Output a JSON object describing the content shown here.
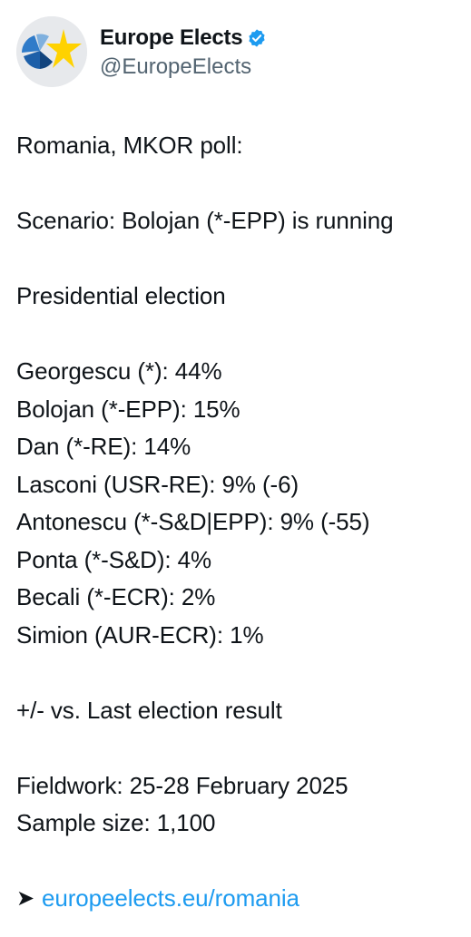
{
  "account": {
    "display_name": "Europe Elects",
    "handle": "@EuropeElects",
    "verified": true,
    "avatar_icon": "europe-elects-logo-icon",
    "verified_icon": "verified-badge-icon"
  },
  "tweet": {
    "intro": "Romania, MKOR poll:",
    "scenario": "Scenario: Bolojan (*-EPP) is running",
    "election": "Presidential election",
    "results": [
      "Georgescu (*): 44%",
      "Bolojan (*-EPP): 15%",
      "Dan (*-RE): 14%",
      "Lasconi (USR-RE): 9% (-6)",
      "Antonescu (*-S&D|EPP): 9% (-55)",
      "Ponta (*-S&D): 4%",
      "Becali (*-ECR): 2%",
      "Simion (AUR-ECR): 1%"
    ],
    "comparison_note": "+/- vs. Last election result",
    "fieldwork": "Fieldwork: 25-28 February 2025",
    "sample_size": "Sample size: 1,100",
    "arrow_symbol": "➤",
    "link_text": "europeelects.eu/romania"
  },
  "colors": {
    "text": "#0f1419",
    "secondary_text": "#536471",
    "link": "#1d9bf0",
    "verified": "#1d9bf0",
    "logo_blue": "#1d5fa8",
    "logo_yellow": "#ffd200"
  }
}
